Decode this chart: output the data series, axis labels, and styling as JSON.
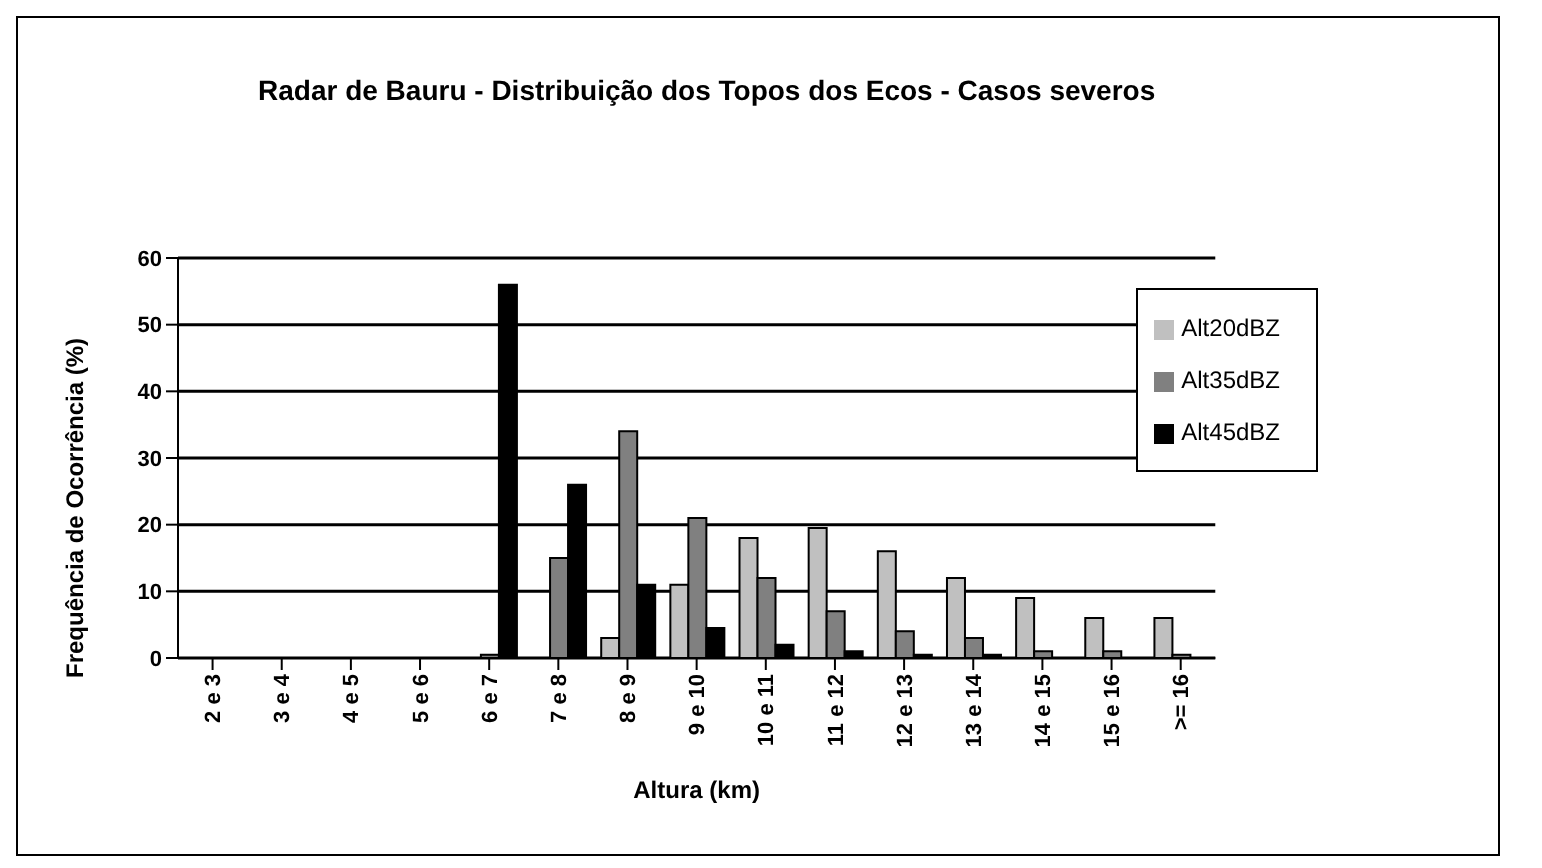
{
  "chart_data": {
    "type": "bar",
    "title": "Radar de Bauru - Distribuição dos Topos dos Ecos - Casos severos",
    "xlabel": "Altura (km)",
    "ylabel": "Frequência de Ocorrência (%)",
    "categories": [
      "2 e 3",
      "3 e 4",
      "4 e 5",
      "5 e 6",
      "6 e 7",
      "7 e 8",
      "8 e 9",
      "9 e 10",
      "10 e 11",
      "11 e 12",
      "12 e 13",
      "13 e 14",
      "14 e 15",
      "15 e 16",
      ">= 16"
    ],
    "series": [
      {
        "name": "Alt20dBZ",
        "color": "#c0c0c0",
        "values": [
          0,
          0,
          0,
          0,
          0,
          0,
          3,
          11,
          18,
          19.5,
          16,
          12,
          9,
          6,
          6
        ]
      },
      {
        "name": "Alt35dBZ",
        "color": "#808080",
        "values": [
          0,
          0,
          0,
          0,
          0.5,
          15,
          34,
          21,
          12,
          7,
          4,
          3,
          1,
          1,
          0.5
        ]
      },
      {
        "name": "Alt45dBZ",
        "color": "#000000",
        "values": [
          0,
          0,
          0,
          0,
          56,
          26,
          11,
          4.5,
          2,
          1,
          0.5,
          0.5,
          0,
          0,
          0
        ]
      }
    ],
    "ylim": [
      0,
      60
    ],
    "yticks": [
      0,
      10,
      20,
      30,
      40,
      50,
      60
    ],
    "grid": "y",
    "legend": "top right"
  }
}
